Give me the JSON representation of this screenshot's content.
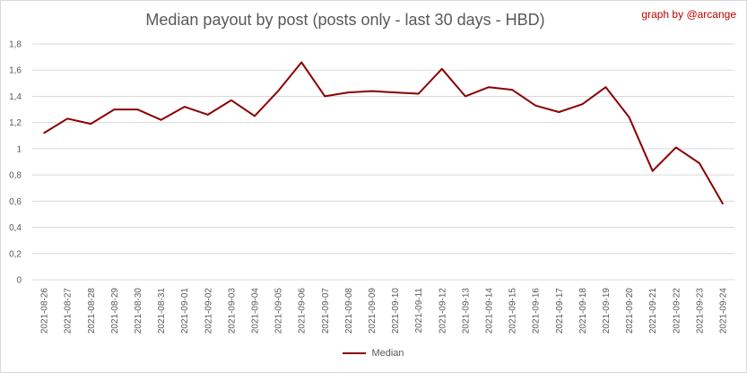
{
  "title": "Median payout by post (posts only - last 30 days - HBD)",
  "credit": "graph by @arcange",
  "colors": {
    "line": "#8b0000",
    "grid": "#d9d9d9",
    "text": "#595959",
    "credit": "#c00000"
  },
  "chart_data": {
    "type": "line",
    "title": "Median payout by post (posts only - last 30 days - HBD)",
    "xlabel": "",
    "ylabel": "",
    "ylim": [
      0,
      1.8
    ],
    "yticks": [
      "0",
      "0,2",
      "0,4",
      "0,6",
      "0,8",
      "1",
      "1,2",
      "1,4",
      "1,6",
      "1,8"
    ],
    "grid": true,
    "legend_position": "bottom",
    "categories": [
      "2021-08-26",
      "2021-08-27",
      "2021-08-28",
      "2021-08-29",
      "2021-08-30",
      "2021-08-31",
      "2021-09-01",
      "2021-09-02",
      "2021-09-03",
      "2021-09-04",
      "2021-09-05",
      "2021-09-06",
      "2021-09-07",
      "2021-09-08",
      "2021-09-09",
      "2021-09-10",
      "2021-09-11",
      "2021-09-12",
      "2021-09-13",
      "2021-09-14",
      "2021-09-15",
      "2021-09-16",
      "2021-09-17",
      "2021-09-18",
      "2021-09-19",
      "2021-09-20",
      "2021-09-21",
      "2021-09-22",
      "2021-09-23",
      "2021-09-24"
    ],
    "series": [
      {
        "name": "Median",
        "values": [
          1.12,
          1.23,
          1.19,
          1.3,
          1.3,
          1.22,
          1.32,
          1.26,
          1.37,
          1.25,
          1.44,
          1.66,
          1.4,
          1.43,
          1.44,
          1.43,
          1.42,
          1.61,
          1.4,
          1.47,
          1.45,
          1.33,
          1.28,
          1.34,
          1.47,
          1.24,
          0.83,
          1.01,
          0.89,
          0.58
        ]
      }
    ]
  }
}
